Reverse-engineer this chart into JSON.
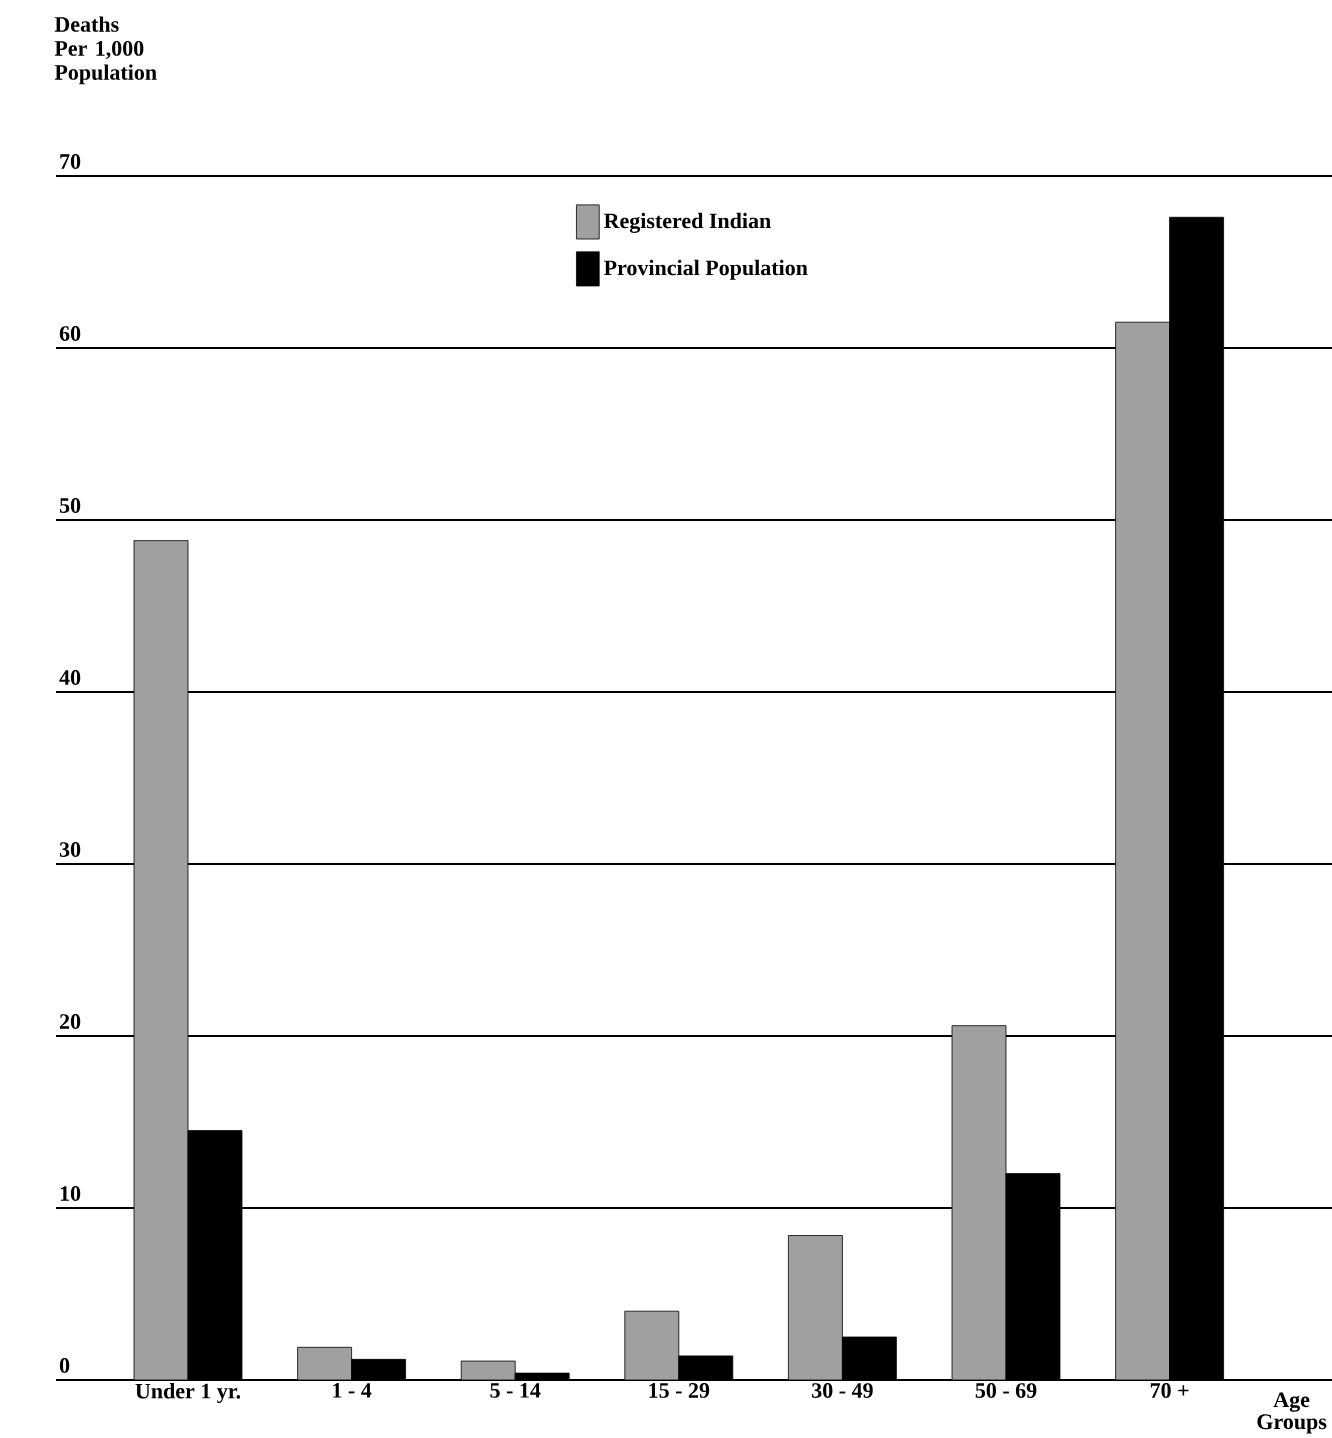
{
  "chart_data": {
    "type": "bar",
    "ylabel": "Deaths Per 1,000 Population",
    "xlabel": "Age Groups",
    "categories": [
      "Under 1 yr.",
      "1 - 4",
      "5 - 14",
      "15 - 29",
      "30 - 49",
      "50 - 69",
      "70 +"
    ],
    "series": [
      {
        "name": "Registered Indian",
        "color": "#a0a0a0",
        "values": [
          48.8,
          1.9,
          1.1,
          4.0,
          8.4,
          20.6,
          61.5
        ]
      },
      {
        "name": "Provincial Population",
        "color": "#000000",
        "values": [
          14.5,
          1.2,
          0.4,
          1.4,
          2.5,
          12.0,
          67.6
        ]
      }
    ],
    "ylim": [
      0,
      70
    ],
    "yticks": [
      0,
      10,
      20,
      30,
      40,
      50,
      60,
      70
    ],
    "grid": "y",
    "legend": "top"
  }
}
